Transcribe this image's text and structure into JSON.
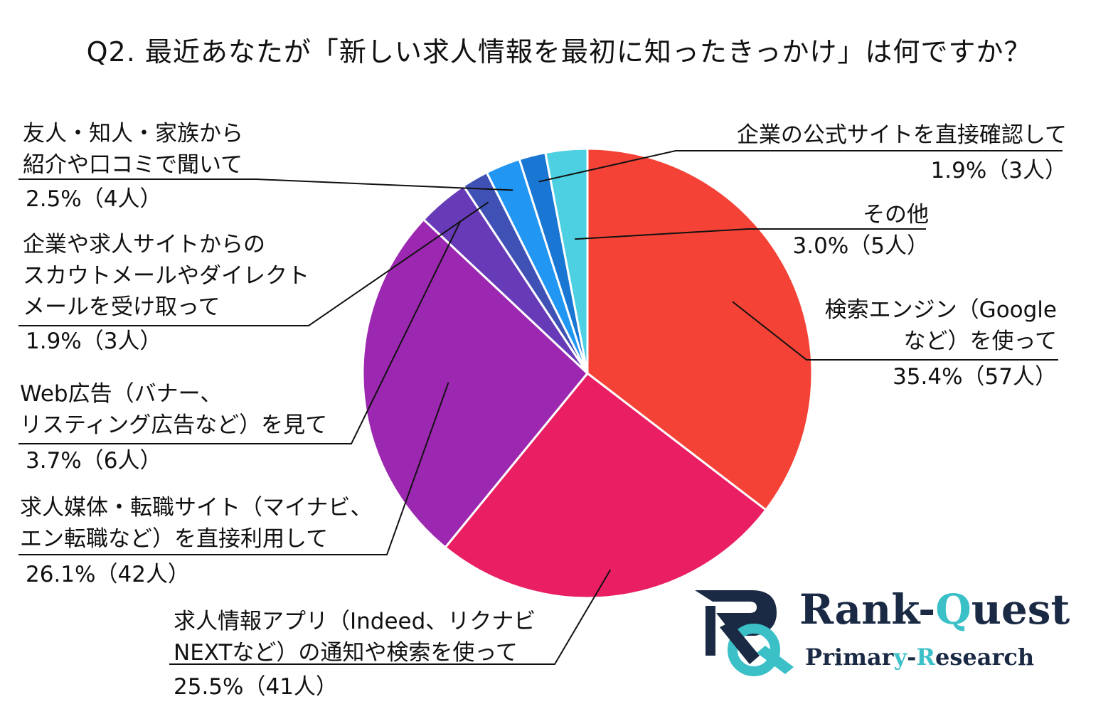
{
  "chart_data": {
    "type": "pie",
    "title": "Q2. 最近あなたが「新しい求人情報を最初に知ったきっかけ」は何ですか？",
    "slices": [
      {
        "label": "検索エンジン（Googleなど）を使って",
        "lines": [
          "検索エンジン（Google",
          "など）を使って"
        ],
        "value_text": "35.4%（57人）",
        "percent": 35.4,
        "count": 57,
        "color": "#f44336"
      },
      {
        "label": "求人情報アプリ（Indeed、リクナビNEXTなど）の通知や検索を使って",
        "lines": [
          "求人情報アプリ（Indeed、リクナビ",
          "NEXTなど）の通知や検索を使って"
        ],
        "value_text": "25.5%（41人）",
        "percent": 25.5,
        "count": 41,
        "color": "#e91e63"
      },
      {
        "label": "求人媒体・転職サイト（マイナビ、エン転職など）を直接利用して",
        "lines": [
          "求人媒体・転職サイト（マイナビ、",
          "エン転職など）を直接利用して"
        ],
        "value_text": "26.1%（42人）",
        "percent": 26.1,
        "count": 42,
        "color": "#9c27b0"
      },
      {
        "label": "Web広告（バナー、リスティング広告など）を見て",
        "lines": [
          "Web広告（バナー、",
          "リスティング広告など）を見て"
        ],
        "value_text": "3.7%（6人）",
        "percent": 3.7,
        "count": 6,
        "color": "#673ab7"
      },
      {
        "label": "企業や求人サイトからのスカウトメールやダイレクトメールを受け取って",
        "lines": [
          "企業や求人サイトからの",
          "スカウトメールやダイレクト",
          "メールを受け取って"
        ],
        "value_text": "1.9%（3人）",
        "percent": 1.9,
        "count": 3,
        "color": "#3f51b5"
      },
      {
        "label": "友人・知人・家族から紹介や口コミで聞いて",
        "lines": [
          "友人・知人・家族から",
          "紹介や口コミで聞いて"
        ],
        "value_text": "2.5%（4人）",
        "percent": 2.5,
        "count": 4,
        "color": "#2196f3"
      },
      {
        "label": "企業の公式サイトを直接確認して",
        "lines": [
          "企業の公式サイトを直接確認して"
        ],
        "value_text": "1.9%（3人）",
        "percent": 1.9,
        "count": 3,
        "color": "#1976d2"
      },
      {
        "label": "その他",
        "lines": [
          "その他"
        ],
        "value_text": "3.0%（5人）",
        "percent": 3.0,
        "count": 5,
        "color": "#4dd0e1"
      }
    ]
  },
  "logo": {
    "name_part1": "Rank-",
    "name_accent": "Q",
    "name_part2": "uest",
    "sub_part1": "Primar",
    "sub_accent1": "y",
    "sub_part2": "-",
    "sub_accent2": "R",
    "sub_part3": "esearch",
    "colors": {
      "navy": "#1a2a44",
      "teal": "#3cc0c8"
    }
  }
}
